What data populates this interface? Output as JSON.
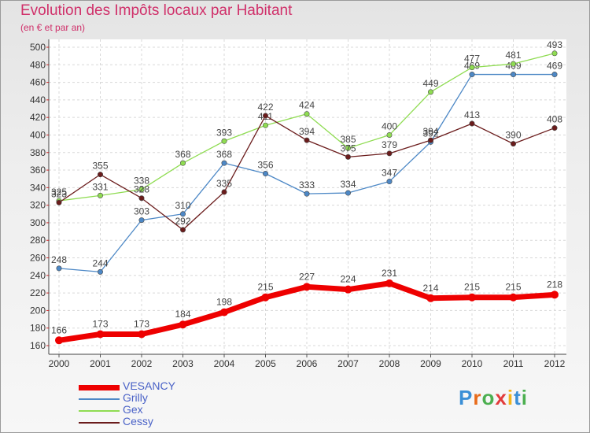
{
  "chart_data": {
    "type": "line",
    "title": "Evolution des Impôts locaux par Habitant",
    "subtitle": "(en € et par an)",
    "categories": [
      "2000",
      "2001",
      "2002",
      "2003",
      "2004",
      "2005",
      "2006",
      "2007",
      "2008",
      "2009",
      "2010",
      "2011",
      "2012"
    ],
    "ylim": [
      160,
      500
    ],
    "yticks": [
      160,
      180,
      200,
      220,
      240,
      260,
      280,
      300,
      320,
      340,
      360,
      380,
      400,
      420,
      440,
      460,
      480,
      500
    ],
    "grid": true,
    "series": [
      {
        "name": "Grilly",
        "color": "#4d88c6",
        "values": [
          248,
          244,
          303,
          310,
          368,
          356,
          333,
          334,
          347,
          392,
          469,
          469,
          469
        ]
      },
      {
        "name": "Gex",
        "color": "#8fdc52",
        "values": [
          325,
          331,
          338,
          368,
          393,
          411,
          424,
          385,
          400,
          449,
          477,
          481,
          493
        ]
      },
      {
        "name": "Cessy",
        "color": "#6b1c1c",
        "values": [
          323,
          355,
          328,
          292,
          335,
          422,
          394,
          375,
          379,
          394,
          413,
          390,
          408
        ]
      },
      {
        "name": "VESANCY",
        "color": "#ee0000",
        "values": [
          166,
          173,
          173,
          184,
          198,
          215,
          227,
          224,
          231,
          214,
          215,
          215,
          218
        ]
      }
    ],
    "legend_order": [
      "VESANCY",
      "Grilly",
      "Gex",
      "Cessy"
    ]
  },
  "logo": {
    "text": "Proxiti",
    "letters": [
      "P",
      "r",
      "o",
      "x",
      "i",
      "t",
      "i"
    ],
    "colors": [
      "#3b8fd6",
      "#e86b1a",
      "#4caf50",
      "#e23b3b",
      "#f2b51b",
      "#3b8fd6",
      "#4caf50"
    ]
  }
}
